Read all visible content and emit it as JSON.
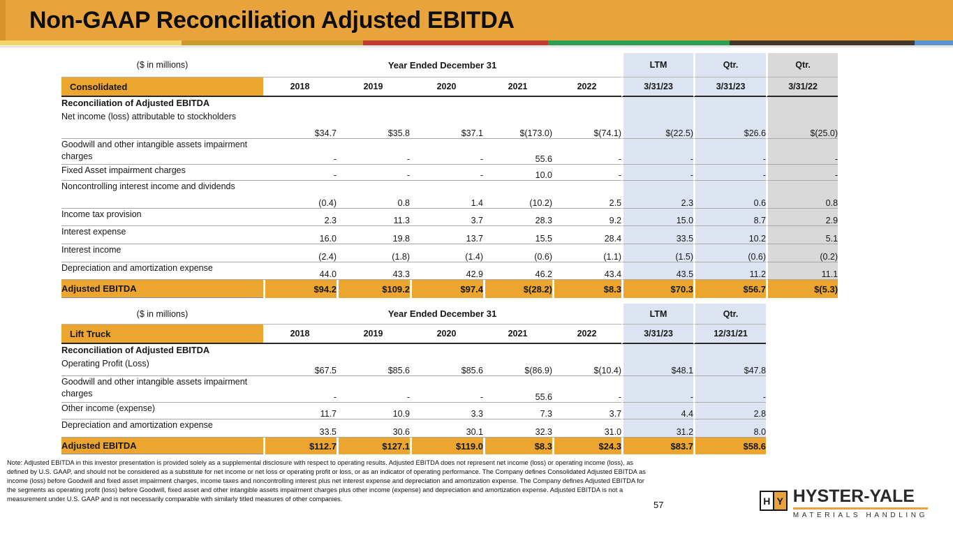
{
  "slide": {
    "title": "Non-GAAP Reconciliation Adjusted EBITDA",
    "page_number": "57",
    "note": "Note: Adjusted EBITDA in this investor presentation is provided solely as a supplemental disclosure with respect to operating results. Adjusted EBITDA does not represent net income (loss) or operating income (loss), as defined by U.S. GAAP, and should not be considered as a substitute for net income or net loss or operating profit or loss, or as an indicator of operating performance. The Company defines Consolidated Adjusted EBITDA as income (loss) before Goodwill and fixed asset impairment charges, income taxes and noncontrolling interest plus net interest expense and depreciation and amortization expense. The Company defines Adjusted EBITDA for the segments as operating profit (loss) before Goodwill, fixed asset and other intangible assets impairment charges plus other income (expense) and depreciation and amortization expense. Adjusted EBITDA is not a measurement under U.S. GAAP and is not necessarily comparable with similarly titled measures of other companies."
  },
  "colors": {
    "accent_orange": "#E8A33C",
    "table_orange": "#ECA62F",
    "shade_blue": "#DCE4F1",
    "shade_gray": "#D9D9D9",
    "stripe": [
      "#F3D66B",
      "#C9992A",
      "#C23B31",
      "#2E9E50",
      "#453729",
      "#5B93D0"
    ]
  },
  "logo": {
    "icon_left": "H",
    "icon_right": "Y",
    "brand": "HYSTER-YALE",
    "tagline": "MATERIALS HANDLING"
  },
  "tables": {
    "consolidated": {
      "units_label": "($ in millions)",
      "period_label": "Year Ended December 31",
      "section_label": "Consolidated",
      "period_cols": [
        "LTM",
        "Qtr.",
        "Qtr."
      ],
      "years": [
        "2018",
        "2019",
        "2020",
        "2021",
        "2022"
      ],
      "dates": [
        "3/31/23",
        "3/31/23",
        "3/31/22"
      ],
      "rows": [
        {
          "label": "Reconciliation of Adjusted EBITDA",
          "style": "section",
          "values": []
        },
        {
          "label": "Net income (loss) attributable to stockholders",
          "style": "data",
          "values": [
            "$34.7",
            "$35.8",
            "$37.1",
            "$(173.0)",
            "$(74.1)",
            "$(22.5)",
            "$26.6",
            "$(25.0)"
          ]
        },
        {
          "label": "Goodwill and other intangible assets impairment charges",
          "style": "data",
          "values": [
            "-",
            "-",
            "-",
            "55.6",
            "-",
            "-",
            "-",
            "-"
          ]
        },
        {
          "label": "Fixed Asset impairment charges",
          "style": "data",
          "values": [
            "-",
            "-",
            "-",
            "10.0",
            "-",
            "-",
            "-",
            "-"
          ]
        },
        {
          "label": "Noncontrolling interest income and dividends",
          "style": "data",
          "values": [
            "(0.4)",
            "0.8",
            "1.4",
            "(10.2)",
            "2.5",
            "2.3",
            "0.6",
            "0.8"
          ]
        },
        {
          "label": "Income tax provision",
          "style": "data",
          "values": [
            "2.3",
            "11.3",
            "3.7",
            "28.3",
            "9.2",
            "15.0",
            "8.7",
            "2.9"
          ]
        },
        {
          "label": "Interest expense",
          "style": "data",
          "values": [
            "16.0",
            "19.8",
            "13.7",
            "15.5",
            "28.4",
            "33.5",
            "10.2",
            "5.1"
          ]
        },
        {
          "label": "Interest income",
          "style": "data",
          "values": [
            "(2.4)",
            "(1.8)",
            "(1.4)",
            "(0.6)",
            "(1.1)",
            "(1.5)",
            "(0.6)",
            "(0.2)"
          ]
        },
        {
          "label": "Depreciation and amortization expense",
          "style": "data",
          "values": [
            "44.0",
            "43.3",
            "42.9",
            "46.2",
            "43.4",
            "43.5",
            "11.2",
            "11.1"
          ]
        },
        {
          "label": "Adjusted EBITDA",
          "style": "total",
          "values": [
            "$94.2",
            "$109.2",
            "$97.4",
            "$(28.2)",
            "$8.3",
            "$70.3",
            "$56.7",
            "$(5.3)"
          ]
        }
      ]
    },
    "lift_truck": {
      "units_label": "($ in millions)",
      "period_label": "Year Ended December 31",
      "section_label": "Lift Truck",
      "period_cols": [
        "LTM",
        "Qtr."
      ],
      "years": [
        "2018",
        "2019",
        "2020",
        "2021",
        "2022"
      ],
      "dates": [
        "3/31/23",
        "12/31/21"
      ],
      "rows": [
        {
          "label": "Reconciliation of Adjusted EBITDA",
          "style": "section",
          "values": []
        },
        {
          "label": "Operating Profit (Loss)",
          "style": "data",
          "values": [
            "$67.5",
            "$85.6",
            "$85.6",
            "$(86.9)",
            "$(10.4)",
            "$48.1",
            "$47.8"
          ]
        },
        {
          "label": "Goodwill and other intangible assets impairment charges",
          "style": "data",
          "values": [
            "-",
            "-",
            "-",
            "55.6",
            "-",
            "-",
            "-"
          ]
        },
        {
          "label": "Other income (expense)",
          "style": "data",
          "values": [
            "11.7",
            "10.9",
            "3.3",
            "7.3",
            "3.7",
            "4.4",
            "2.8"
          ]
        },
        {
          "label": "Depreciation and amortization expense",
          "style": "data",
          "values": [
            "33.5",
            "30.6",
            "30.1",
            "32.3",
            "31.0",
            "31.2",
            "8.0"
          ]
        },
        {
          "label": "Adjusted EBITDA",
          "style": "total",
          "values": [
            "$112.7",
            "$127.1",
            "$119.0",
            "$8.3",
            "$24.3",
            "$83.7",
            "$58.6"
          ]
        }
      ]
    }
  }
}
